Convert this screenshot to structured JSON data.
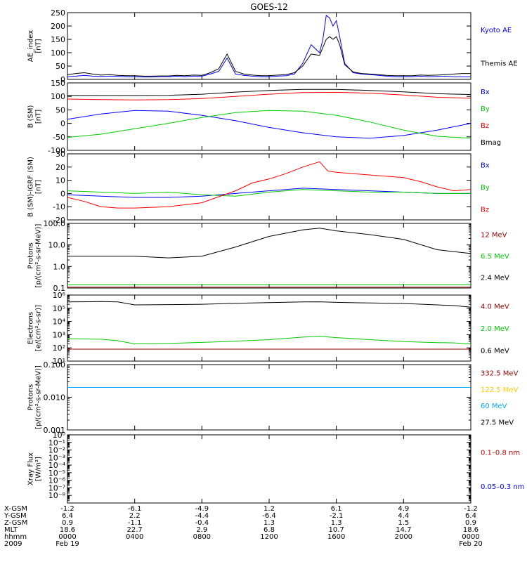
{
  "title": "GOES-12",
  "chart_data": [
    {
      "type": "line",
      "ylabel": "AE_index\n[nT]",
      "ylim": [
        0,
        250
      ],
      "yticks": [
        0,
        50,
        100,
        150,
        200,
        250
      ],
      "grid": false,
      "legend": [
        {
          "label": "Kyoto AE",
          "color": "#0000ff"
        },
        {
          "label": "Themis AE",
          "color": "#000000"
        }
      ],
      "series": [
        {
          "name": "Kyoto AE",
          "color": "#0000ff",
          "x": [
            0,
            0.5,
            1,
            1.5,
            2,
            2.5,
            3,
            3.5,
            4,
            4.5,
            5,
            5.5,
            6,
            6.5,
            7,
            7.5,
            8,
            8.5,
            9,
            9.5,
            10,
            10.5,
            11,
            11.5,
            12,
            12.5,
            13,
            13.5,
            14,
            14.5,
            15,
            15.2,
            15.4,
            15.6,
            15.8,
            16,
            16.2,
            16.5,
            17,
            17.5,
            18,
            18.5,
            19,
            19.5,
            20,
            20.5,
            21,
            21.5,
            22,
            22.5,
            23,
            23.5,
            24
          ],
          "values": [
            10,
            12,
            15,
            12,
            11,
            12,
            11,
            10,
            10,
            9,
            9,
            10,
            10,
            12,
            10,
            12,
            12,
            20,
            30,
            80,
            20,
            15,
            12,
            10,
            10,
            12,
            14,
            20,
            60,
            130,
            100,
            150,
            240,
            230,
            200,
            220,
            160,
            60,
            25,
            20,
            18,
            15,
            12,
            10,
            10,
            10,
            12,
            10,
            11,
            12,
            10,
            10,
            10
          ]
        },
        {
          "name": "Themis AE",
          "color": "#000000",
          "x": [
            0,
            0.5,
            1,
            1.5,
            2,
            2.5,
            3,
            3.5,
            4,
            4.5,
            5,
            5.5,
            6,
            6.5,
            7,
            7.5,
            8,
            8.5,
            9,
            9.5,
            10,
            10.5,
            11,
            11.5,
            12,
            12.5,
            13,
            13.5,
            14,
            14.5,
            15,
            15.2,
            15.4,
            15.6,
            15.8,
            16,
            16.2,
            16.5,
            17,
            17.5,
            18,
            18.5,
            19,
            19.5,
            20,
            20.5,
            21,
            21.5,
            22,
            22.5,
            23,
            23.5,
            24
          ],
          "values": [
            18,
            22,
            25,
            20,
            16,
            18,
            15,
            14,
            14,
            12,
            12,
            13,
            13,
            15,
            14,
            16,
            15,
            25,
            40,
            95,
            30,
            20,
            16,
            14,
            14,
            16,
            18,
            25,
            50,
            95,
            90,
            120,
            150,
            160,
            150,
            160,
            130,
            55,
            28,
            22,
            20,
            18,
            15,
            14,
            14,
            14,
            16,
            15,
            16,
            18,
            20,
            22,
            22
          ]
        }
      ]
    },
    {
      "type": "line",
      "ylabel": "B (SM)\n[nT]",
      "ylim": [
        -100,
        150
      ],
      "yticks": [
        -100,
        -50,
        0,
        50,
        100,
        150
      ],
      "grid": false,
      "legend": [
        {
          "label": "Bx",
          "color": "#0000ff"
        },
        {
          "label": "By",
          "color": "#00cc00"
        },
        {
          "label": "Bz",
          "color": "#ff0000"
        },
        {
          "label": "Bmag",
          "color": "#000000"
        }
      ],
      "series": [
        {
          "name": "Bx",
          "color": "#0000ff",
          "x": [
            0,
            2,
            4,
            6,
            8,
            10,
            12,
            14,
            16,
            18,
            20,
            22,
            24
          ],
          "values": [
            15,
            35,
            48,
            45,
            30,
            10,
            -15,
            -35,
            -50,
            -55,
            -45,
            -25,
            0
          ]
        },
        {
          "name": "By",
          "color": "#00cc00",
          "x": [
            0,
            2,
            4,
            6,
            8,
            10,
            12,
            14,
            16,
            18,
            20,
            22,
            24
          ],
          "values": [
            -52,
            -40,
            -20,
            0,
            22,
            40,
            48,
            45,
            30,
            5,
            -25,
            -48,
            -55
          ]
        },
        {
          "name": "Bz",
          "color": "#ff0000",
          "x": [
            0,
            2,
            4,
            6,
            8,
            10,
            12,
            14,
            16,
            18,
            20,
            22,
            24
          ],
          "values": [
            90,
            88,
            87,
            88,
            92,
            100,
            108,
            114,
            115,
            112,
            105,
            97,
            93
          ]
        },
        {
          "name": "Bmag",
          "color": "#000000",
          "x": [
            0,
            2,
            4,
            6,
            8,
            10,
            12,
            14,
            16,
            18,
            20,
            22,
            24
          ],
          "values": [
            104,
            103,
            103,
            104,
            108,
            116,
            122,
            126,
            126,
            122,
            117,
            110,
            107
          ]
        }
      ]
    },
    {
      "type": "line",
      "ylabel": "B (SM)-IGRF (SM)\n[nT]",
      "ylim": [
        -20,
        30
      ],
      "yticks": [
        -20,
        -10,
        0,
        10,
        20,
        30
      ],
      "grid": false,
      "legend": [
        {
          "label": "Bx",
          "color": "#0000ff"
        },
        {
          "label": "By",
          "color": "#00cc00"
        },
        {
          "label": "Bz",
          "color": "#ff0000"
        }
      ],
      "series": [
        {
          "name": "Bx",
          "color": "#0000ff",
          "x": [
            0,
            2,
            4,
            6,
            8,
            10,
            12,
            14,
            16,
            18,
            20,
            22,
            24
          ],
          "values": [
            -1,
            -2,
            -3,
            -3,
            -2,
            0,
            2,
            4,
            3,
            2,
            1,
            0,
            0
          ]
        },
        {
          "name": "By",
          "color": "#00cc00",
          "x": [
            0,
            2,
            4,
            6,
            8,
            10,
            12,
            14,
            16,
            18,
            20,
            22,
            24
          ],
          "values": [
            2,
            1,
            0,
            1,
            -1,
            -2,
            1,
            3,
            2,
            1,
            1,
            0,
            0
          ]
        },
        {
          "name": "Bz",
          "color": "#ff0000",
          "x": [
            0,
            1,
            2,
            3,
            4,
            6,
            8,
            10,
            11,
            12,
            13,
            14,
            15,
            15.5,
            16,
            18,
            20,
            21,
            22,
            23,
            24
          ],
          "values": [
            -3,
            -6,
            -10,
            -11,
            -11,
            -10,
            -7,
            2,
            8,
            11,
            15,
            20,
            24,
            17,
            16,
            14,
            12,
            9,
            5,
            2,
            3
          ]
        }
      ]
    },
    {
      "type": "line",
      "ylabel": "Protons\n[p/(cm²-s-sr-MeV)]",
      "yscale": "log",
      "ylim": [
        0.1,
        100
      ],
      "yticks": [
        0.1,
        1.0,
        10.0,
        100
      ],
      "yticklabels": [
        "0.1",
        "1.0",
        "10.0",
        "100.0"
      ],
      "grid": false,
      "legend": [
        {
          "label": "12 MeV",
          "color": "#990000"
        },
        {
          "label": "6.5 MeV",
          "color": "#00cc00"
        },
        {
          "label": "2.4 MeV",
          "color": "#000000"
        }
      ],
      "series": [
        {
          "name": "2.4 MeV",
          "color": "#000000",
          "x": [
            0,
            2,
            4,
            6,
            8,
            10,
            12,
            14,
            15,
            16,
            18,
            20,
            22,
            24
          ],
          "values": [
            3,
            3,
            3,
            2.5,
            3,
            8,
            25,
            50,
            60,
            45,
            30,
            18,
            6,
            4
          ]
        },
        {
          "name": "6.5 MeV",
          "color": "#00cc00",
          "x": [
            0,
            4,
            8,
            12,
            16,
            20,
            24
          ],
          "values": [
            0.14,
            0.14,
            0.14,
            0.14,
            0.14,
            0.14,
            0.14
          ]
        },
        {
          "name": "12 MeV",
          "color": "#990000",
          "x": [
            0,
            4,
            8,
            12,
            16,
            20,
            24
          ],
          "values": [
            0.11,
            0.11,
            0.11,
            0.11,
            0.11,
            0.11,
            0.11
          ]
        }
      ]
    },
    {
      "type": "line",
      "ylabel": "Electrons\n[e/(cm²-s-sr)]",
      "yscale": "log",
      "ylim": [
        10,
        1000000
      ],
      "yticks": [
        10,
        100,
        1000,
        10000,
        100000,
        1000000
      ],
      "yticklabels": [
        "10¹",
        "10²",
        "10³",
        "10⁴",
        "10⁵",
        "10⁶"
      ],
      "grid": false,
      "legend": [
        {
          "label": "4.0 MeV",
          "color": "#990000"
        },
        {
          "label": "2.0 MeV",
          "color": "#00cc00"
        },
        {
          "label": "0.6 MeV",
          "color": "#000000"
        }
      ],
      "series": [
        {
          "name": "0.6 MeV",
          "color": "#000000",
          "x": [
            0,
            2,
            3,
            4,
            6,
            8,
            10,
            12,
            14,
            15,
            16,
            18,
            20,
            22,
            23,
            24
          ],
          "values": [
            300000,
            320000,
            300000,
            180000,
            190000,
            200000,
            240000,
            270000,
            300000,
            310000,
            280000,
            250000,
            230000,
            180000,
            160000,
            120000
          ]
        },
        {
          "name": "2.0 MeV",
          "color": "#00cc00",
          "x": [
            0,
            2,
            3,
            4,
            6,
            8,
            10,
            12,
            14,
            15,
            16,
            18,
            20,
            22,
            23,
            24
          ],
          "values": [
            500,
            450,
            350,
            200,
            220,
            260,
            320,
            420,
            650,
            750,
            600,
            420,
            300,
            250,
            240,
            200
          ]
        },
        {
          "name": "4.0 MeV",
          "color": "#990000",
          "x": [
            0,
            4,
            8,
            12,
            16,
            20,
            24
          ],
          "values": [
            80,
            80,
            80,
            80,
            80,
            80,
            80
          ]
        }
      ]
    },
    {
      "type": "line",
      "ylabel": "Protons\n[p/(cm²-s-sr-MeV)]",
      "yscale": "log",
      "ylim": [
        0.001,
        0.1
      ],
      "yticks": [
        0.001,
        0.01,
        0.1
      ],
      "yticklabels": [
        "0.001",
        "0.010",
        "0.100"
      ],
      "grid": false,
      "legend": [
        {
          "label": "332.5 MeV",
          "color": "#990000"
        },
        {
          "label": "122.5 MeV",
          "color": "#ffcc00"
        },
        {
          "label": "60 MeV",
          "color": "#00aaff"
        },
        {
          "label": "27.5 MeV",
          "color": "#000000"
        }
      ],
      "series": [
        {
          "name": "27.5 MeV",
          "color": "#000000",
          "x": [
            0,
            6,
            12,
            18,
            24
          ],
          "values": [
            0.02,
            0.02,
            0.02,
            0.02,
            0.02
          ]
        },
        {
          "name": "60 MeV",
          "color": "#00aaff",
          "x": [
            0,
            6,
            12,
            18,
            24
          ],
          "values": [
            0.02,
            0.02,
            0.02,
            0.02,
            0.02
          ]
        }
      ]
    },
    {
      "type": "line",
      "ylabel": "Xray Flux\n[W/m²]",
      "yscale": "log",
      "ylim": [
        1e-09,
        1
      ],
      "yticks": [
        1e-08,
        1e-07,
        1e-06,
        1e-05,
        0.0001,
        0.001,
        0.01,
        0.1,
        1
      ],
      "yticklabels": [
        "10⁻⁸",
        "10⁻⁷",
        "10⁻⁶",
        "10⁻⁵",
        "10⁻⁴",
        "10⁻³",
        "10⁻²",
        "10⁻¹",
        "10⁰"
      ],
      "grid": false,
      "legend": [
        {
          "label": "0.1–0.8 nm",
          "color": "#cc0000"
        },
        {
          "label": "0.05–0.3 nm",
          "color": "#0000ff"
        }
      ],
      "series": []
    }
  ],
  "time_axis": {
    "xlim": [
      0,
      24
    ],
    "ticks": [
      0,
      4,
      8,
      12,
      16,
      20,
      24
    ],
    "rows": [
      {
        "label": "X-GSM",
        "values": [
          "-1.2",
          "-6.1",
          "-4.9",
          "1.2",
          "6.1",
          "4.9",
          "-1.2"
        ]
      },
      {
        "label": "Y-GSM",
        "values": [
          "6.4",
          "2.2",
          "-4.4",
          "-6.4",
          "-2.1",
          "4.4",
          "6.4"
        ]
      },
      {
        "label": "Z-GSM",
        "values": [
          "0.9",
          "-1.1",
          "-0.4",
          "1.3",
          "1.3",
          "1.5",
          "0.9"
        ]
      },
      {
        "label": "MLT",
        "values": [
          "18.6",
          "22.7",
          "2.9",
          "6.8",
          "10.7",
          "14.7",
          "18.6"
        ]
      },
      {
        "label": "hhmm",
        "values": [
          "0000",
          "0400",
          "0800",
          "1200",
          "1600",
          "2000",
          "0000"
        ]
      }
    ],
    "year_label": "2009",
    "start_label": "Feb 19",
    "end_label": "Feb 20"
  }
}
